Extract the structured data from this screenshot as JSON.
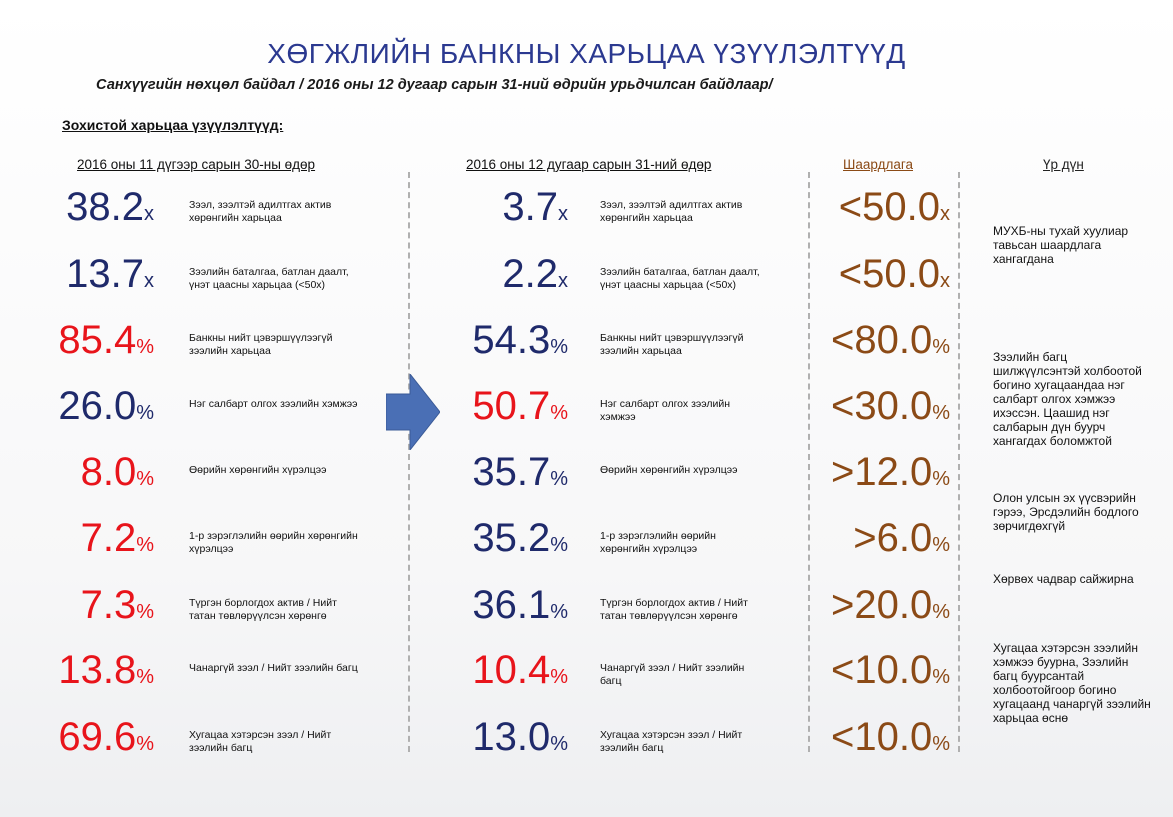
{
  "title": "ХӨГЖЛИЙН БАНКНЫ ХАРЬЦАА ҮЗҮҮЛЭЛТҮҮД",
  "subtitle": "Санхүүгийн нөхцөл байдал / 2016 оны 12 дугаар сарын 31-ний өдрийн урьдчилсан байдлаар/",
  "section_title": "Зохистой харьцаа үзүүлэлтүүд:",
  "columns": {
    "nov": "2016 оны 11 дүгээр сарын 30-ны өдөр",
    "dec": "2016 оны 12 дугаар сарын 31-ний өдөр",
    "requirement": "Шаардлага",
    "result": "Үр дүн"
  },
  "colors": {
    "navy": "#1f2a6b",
    "red": "#e8141b",
    "brown": "#8b4a16",
    "arrow": "#4a6fb5"
  },
  "icons": {
    "arrow": "right-arrow-icon"
  },
  "rows": [
    {
      "nov_value": "38.2",
      "nov_unit": "x",
      "nov_color": "navy",
      "label": "Зээл, зээлтэй адилтгах актив хөрөнгийн харьцаа",
      "dec_value": "3.7",
      "dec_unit": "x",
      "dec_color": "navy",
      "dec_label": "Зээл, зээлтэй адилтгах актив хөрөнгийн харьцаа",
      "req_value": "<50.0",
      "req_unit": "x"
    },
    {
      "nov_value": "13.7",
      "nov_unit": "x",
      "nov_color": "navy",
      "label": "Зээлийн баталгаа, батлан даалт, үнэт цаасны харьцаа (<50x)",
      "dec_value": "2.2",
      "dec_unit": "x",
      "dec_color": "navy",
      "dec_label": "Зээлийн баталгаа, батлан даалт, үнэт цаасны харьцаа (<50x)",
      "req_value": "<50.0",
      "req_unit": "x"
    },
    {
      "nov_value": "85.4",
      "nov_unit": "%",
      "nov_color": "red",
      "label": "Банкны нийт цэвэршүүлээгүй зээлийн харьцаа",
      "dec_value": "54.3",
      "dec_unit": "%",
      "dec_color": "navy",
      "dec_label": "Банкны нийт цэвэршүүлээгүй зээлийн харьцаа",
      "req_value": "<80.0",
      "req_unit": "%"
    },
    {
      "nov_value": "26.0",
      "nov_unit": "%",
      "nov_color": "navy",
      "label": "Нэг салбарт олгох зээлийн хэмжээ",
      "dec_value": "50.7",
      "dec_unit": "%",
      "dec_color": "red",
      "dec_label": "Нэг салбарт олгох зээлийн хэмжээ",
      "req_value": "<30.0",
      "req_unit": "%"
    },
    {
      "nov_value": "8.0",
      "nov_unit": "%",
      "nov_color": "red",
      "label": "Өөрийн хөрөнгийн хүрэлцээ",
      "dec_value": "35.7",
      "dec_unit": "%",
      "dec_color": "navy",
      "dec_label": "Өөрийн хөрөнгийн хүрэлцээ",
      "req_value": ">12.0",
      "req_unit": "%"
    },
    {
      "nov_value": "7.2",
      "nov_unit": "%",
      "nov_color": "red",
      "label": "1-р зэрэглэлийн өөрийн хөрөнгийн хүрэлцээ",
      "dec_value": "35.2",
      "dec_unit": "%",
      "dec_color": "navy",
      "dec_label": "1-р зэрэглэлийн өөрийн хөрөнгийн хүрэлцээ",
      "req_value": ">6.0",
      "req_unit": "%"
    },
    {
      "nov_value": "7.3",
      "nov_unit": "%",
      "nov_color": "red",
      "label": "Түргэн борлогдох актив / Нийт татан төвлөрүүлсэн хөрөнгө",
      "dec_value": "36.1",
      "dec_unit": "%",
      "dec_color": "navy",
      "dec_label": "Түргэн борлогдох актив / Нийт татан төвлөрүүлсэн хөрөнгө",
      "req_value": ">20.0",
      "req_unit": "%"
    },
    {
      "nov_value": "13.8",
      "nov_unit": "%",
      "nov_color": "red",
      "label": "Чанаргүй зээл / Нийт зээлийн багц",
      "dec_value": "10.4",
      "dec_unit": "%",
      "dec_color": "red",
      "dec_label": "Чанаргүй зээл / Нийт зээлийн багц",
      "req_value": "<10.0",
      "req_unit": "%"
    },
    {
      "nov_value": "69.6",
      "nov_unit": "%",
      "nov_color": "red",
      "label": "Хугацаа хэтэрсэн зээл / Нийт зээлийн багц",
      "dec_value": "13.0",
      "dec_unit": "%",
      "dec_color": "navy",
      "dec_label": "Хугацаа хэтэрсэн зээл / Нийт зээлийн багц",
      "req_value": "<10.0",
      "req_unit": "%"
    }
  ],
  "results": [
    "МУХБ-ны тухай хуулиар тавьсан шаардлага хангагдана",
    "Зээлийн багц шилжүүлсэнтэй холбоотой богино хугацаандаа нэг салбарт олгох хэмжээ ихэссэн. Цаашид нэг салбарын дүн буурч хангагдах боломжтой",
    "Олон улсын эх үүсвэрийн гэрээ, Эрсдэлийн бодлого зөрчигдөхгүй",
    "Хөрвөх чадвар сайжирна",
    "Хугацаа хэтэрсэн зээлийн хэмжээ буурна, Зээлийн багц буурсантай холбоотойгоор богино хугацаанд чанаргүй зээлийн харьцаа өснө"
  ]
}
